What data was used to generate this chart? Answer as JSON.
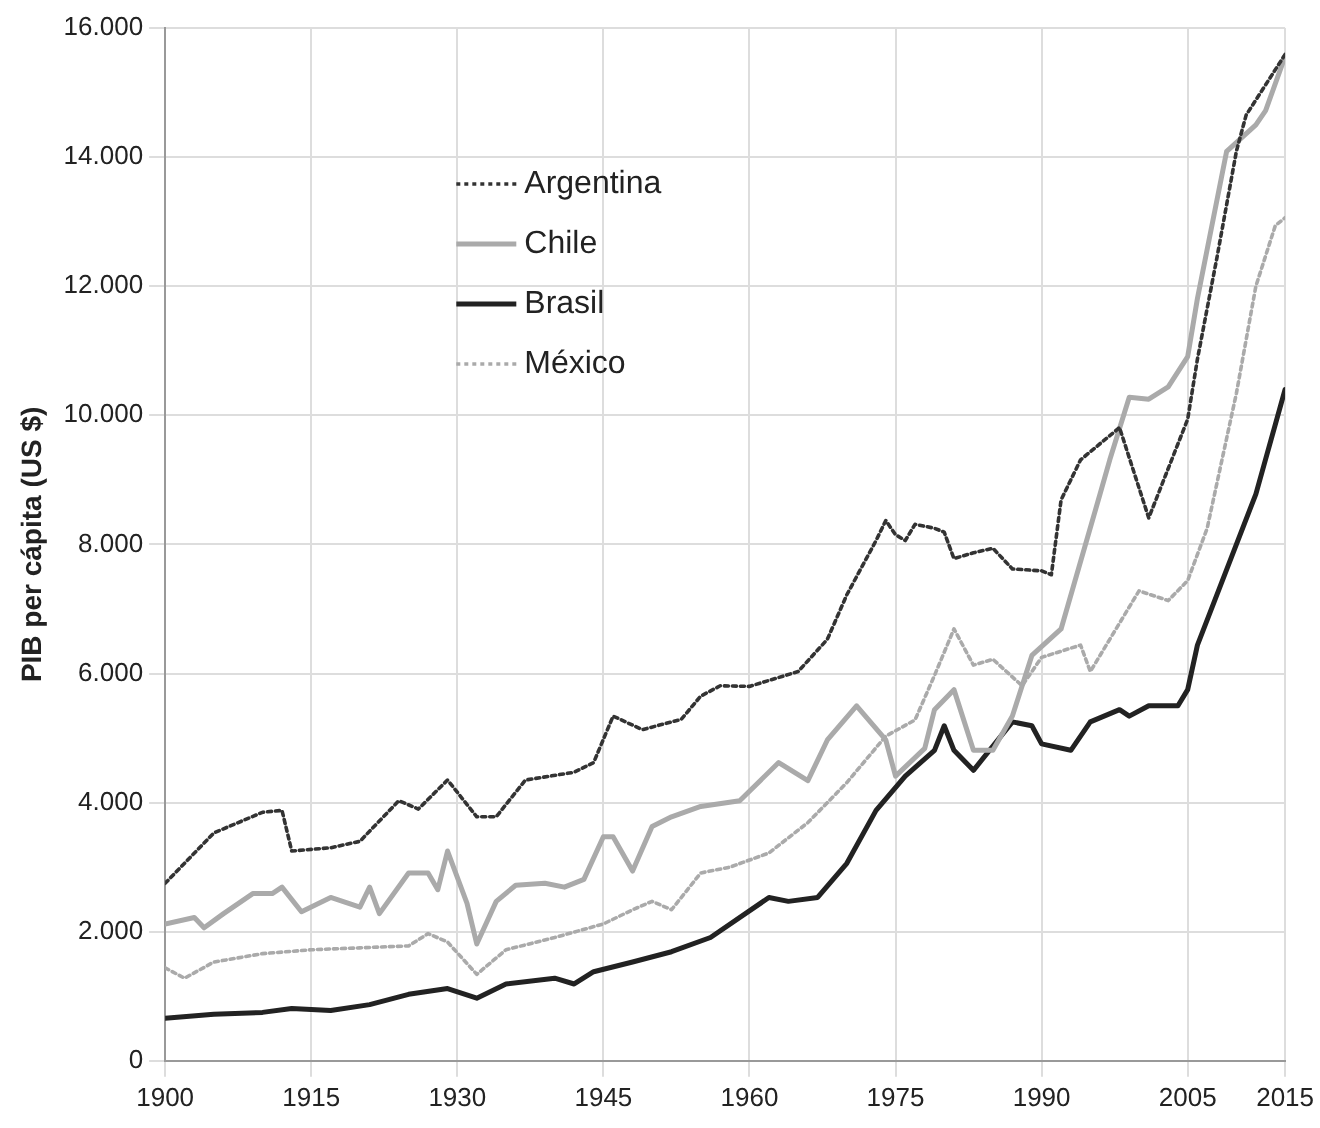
{
  "chart_data": {
    "type": "line",
    "ylabel": "PIB per cápita (US $)",
    "xlim": [
      1900,
      2015
    ],
    "xticks": [
      1900,
      1915,
      1930,
      1945,
      1960,
      1975,
      1990,
      2005,
      2015
    ],
    "ylim": [
      0,
      16000
    ],
    "yticks": [
      0,
      {
        "value": 2000,
        "label": "2.000"
      },
      {
        "value": 4000,
        "label": "4.000"
      },
      {
        "value": 6000,
        "label": "6.000"
      },
      {
        "value": 8000,
        "label": "8.000"
      },
      {
        "value": 10000,
        "label": "10.000"
      },
      {
        "value": 12000,
        "label": "12.000"
      },
      {
        "value": 14000,
        "label": "14.000"
      },
      {
        "value": 16000,
        "label": "16.000"
      }
    ],
    "grid": true,
    "legend": "top left",
    "marker": "none",
    "series": [
      {
        "name": "Argentina",
        "color": "#333333",
        "line_style": "dotted",
        "x": [
          1900,
          1905,
          1910,
          1912,
          1913,
          1917,
          1920,
          1924,
          1926,
          1929,
          1932,
          1934,
          1937,
          1942,
          1944,
          1946,
          1949,
          1953,
          1955,
          1957,
          1960,
          1965,
          1968,
          1970,
          1973,
          1974,
          1975,
          1976,
          1977,
          1979,
          1980,
          1981,
          1983,
          1985,
          1987,
          1990,
          1991,
          1992,
          1994,
          1998,
          2001,
          2005,
          2006,
          2008,
          2010,
          2011,
          2015
        ],
        "values": [
          2750,
          3530,
          3850,
          3880,
          3250,
          3300,
          3400,
          4030,
          3900,
          4350,
          3780,
          3780,
          4350,
          4470,
          4620,
          5340,
          5130,
          5290,
          5650,
          5810,
          5800,
          6030,
          6530,
          7220,
          8060,
          8370,
          8150,
          8060,
          8310,
          8250,
          8190,
          7780,
          7870,
          7940,
          7620,
          7590,
          7530,
          8690,
          9310,
          9810,
          8410,
          9940,
          10870,
          12440,
          14090,
          14650,
          15590
        ]
      },
      {
        "name": "Chile",
        "color": "#aaaaaa",
        "line_style": "solid",
        "x": [
          1900,
          1903,
          1904,
          1906,
          1909,
          1911,
          1912,
          1914,
          1917,
          1920,
          1921,
          1922,
          1925,
          1927,
          1928,
          1929,
          1931,
          1932,
          1934,
          1936,
          1939,
          1941,
          1943,
          1945,
          1946,
          1948,
          1950,
          1952,
          1955,
          1959,
          1963,
          1966,
          1968,
          1971,
          1974,
          1975,
          1978,
          1979,
          1981,
          1983,
          1985,
          1987,
          1989,
          1992,
          1996,
          1997,
          1999,
          2001,
          2003,
          2005,
          2006,
          2009,
          2012,
          2013,
          2015
        ],
        "values": [
          2120,
          2220,
          2060,
          2280,
          2590,
          2590,
          2690,
          2310,
          2530,
          2380,
          2690,
          2280,
          2910,
          2910,
          2650,
          3250,
          2440,
          1810,
          2470,
          2720,
          2750,
          2690,
          2810,
          3470,
          3470,
          2940,
          3630,
          3780,
          3940,
          4030,
          4620,
          4340,
          4970,
          5500,
          4970,
          4410,
          4840,
          5440,
          5750,
          4810,
          4810,
          5340,
          6280,
          6690,
          8780,
          9310,
          10280,
          10250,
          10440,
          10910,
          11810,
          14090,
          14500,
          14720,
          15560
        ]
      },
      {
        "name": "Brasil",
        "color": "#222222",
        "line_style": "solid",
        "x": [
          1900,
          1905,
          1910,
          1913,
          1917,
          1921,
          1925,
          1929,
          1932,
          1935,
          1940,
          1942,
          1944,
          1948,
          1952,
          1956,
          1962,
          1964,
          1967,
          1970,
          1973,
          1976,
          1979,
          1980,
          1981,
          1983,
          1987,
          1989,
          1990,
          1993,
          1995,
          1998,
          1999,
          2001,
          2004,
          2005,
          2006,
          2012,
          2015
        ],
        "values": [
          660,
          720,
          750,
          810,
          780,
          870,
          1030,
          1120,
          970,
          1190,
          1280,
          1190,
          1380,
          1530,
          1690,
          1910,
          2530,
          2470,
          2530,
          3060,
          3880,
          4410,
          4810,
          5190,
          4810,
          4500,
          5250,
          5190,
          4910,
          4810,
          5250,
          5440,
          5340,
          5500,
          5500,
          5750,
          6440,
          8780,
          10400
        ]
      },
      {
        "name": "México",
        "color": "#aaaaaa",
        "line_style": "dotted",
        "x": [
          1900,
          1902,
          1905,
          1910,
          1915,
          1920,
          1925,
          1927,
          1929,
          1932,
          1935,
          1940,
          1945,
          1948,
          1950,
          1952,
          1955,
          1958,
          1962,
          1966,
          1970,
          1974,
          1977,
          1979,
          1981,
          1983,
          1985,
          1988,
          1990,
          1994,
          1995,
          2000,
          2003,
          2005,
          2007,
          2010,
          2012,
          2014,
          2015
        ],
        "values": [
          1440,
          1280,
          1530,
          1660,
          1720,
          1750,
          1780,
          1970,
          1840,
          1340,
          1720,
          1910,
          2120,
          2340,
          2470,
          2340,
          2910,
          3000,
          3220,
          3690,
          4310,
          5030,
          5280,
          5970,
          6690,
          6130,
          6220,
          5810,
          6250,
          6440,
          6030,
          7280,
          7130,
          7440,
          8250,
          10340,
          12000,
          12940,
          13060
        ]
      }
    ]
  }
}
